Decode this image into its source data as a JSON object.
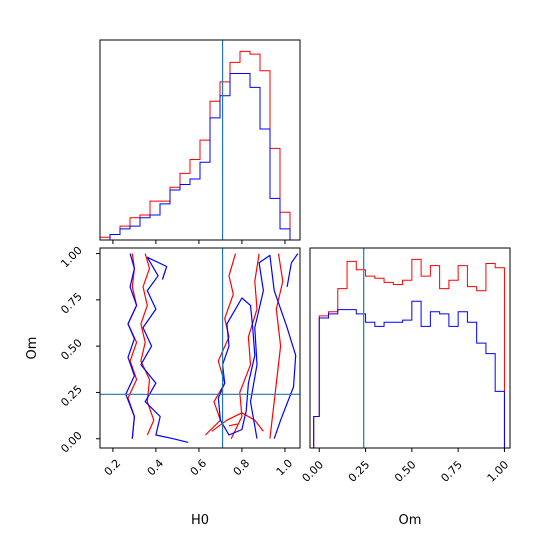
{
  "chart_data": [
    {
      "panel": "H0 marginal",
      "type": "histogram",
      "xlim": [
        0.14,
        1.07
      ],
      "truth_x": 0.71,
      "x_ticks": [
        0.2,
        0.4,
        0.6,
        0.8,
        1.0
      ],
      "bins": [
        0.14,
        0.1865,
        0.233,
        0.2795,
        0.326,
        0.3725,
        0.419,
        0.4655,
        0.512,
        0.5585,
        0.605,
        0.6515,
        0.698,
        0.7445,
        0.791,
        0.8375,
        0.884,
        0.9305,
        0.977,
        1.0235,
        1.07
      ],
      "series": [
        {
          "color": "#ff0000",
          "values": [
            1,
            2,
            5,
            8,
            9,
            14,
            14,
            19,
            24,
            29,
            36,
            50,
            57,
            64,
            68,
            67,
            61,
            33,
            10,
            0
          ]
        },
        {
          "color": "#0000ff",
          "values": [
            0,
            2,
            4,
            5,
            8,
            9,
            13,
            18,
            20,
            22,
            28,
            44,
            52,
            60,
            60,
            55,
            40,
            15,
            4,
            0
          ]
        }
      ]
    },
    {
      "panel": "Om vs H0 2D",
      "type": "contour",
      "xlabel": "H0",
      "ylabel": "Om",
      "xlim": [
        0.14,
        1.07
      ],
      "ylim": [
        -0.05,
        1.03
      ],
      "x_ticks": [
        "0.2",
        "0.4",
        "0.6",
        "0.8",
        "1.0"
      ],
      "y_ticks": [
        "0.00",
        "0.25",
        "0.50",
        "0.75",
        "1.00"
      ],
      "truth": {
        "x": 0.71,
        "y": 0.24
      },
      "series": [
        {
          "color": "#ff0000",
          "contours": [
            [
              [
                0.36,
                0.02
              ],
              [
                0.39,
                0.1
              ],
              [
                0.36,
                0.2
              ],
              [
                0.37,
                0.32
              ],
              [
                0.33,
                0.42
              ],
              [
                0.35,
                0.52
              ],
              [
                0.33,
                0.62
              ],
              [
                0.36,
                0.72
              ],
              [
                0.34,
                0.82
              ],
              [
                0.37,
                0.92
              ],
              [
                0.35,
                1.0
              ]
            ],
            [
              [
                0.29,
                0.0
              ],
              [
                0.3,
                0.12
              ],
              [
                0.27,
                0.22
              ],
              [
                0.31,
                0.32
              ],
              [
                0.28,
                0.42
              ],
              [
                0.31,
                0.52
              ],
              [
                0.27,
                0.62
              ],
              [
                0.31,
                0.72
              ],
              [
                0.29,
                0.82
              ],
              [
                0.3,
                0.92
              ],
              [
                0.29,
                1.0
              ]
            ],
            [
              [
                0.63,
                0.02
              ],
              [
                0.7,
                0.1
              ],
              [
                0.67,
                0.2
              ],
              [
                0.72,
                0.3
              ],
              [
                0.69,
                0.42
              ],
              [
                0.74,
                0.55
              ],
              [
                0.72,
                0.65
              ],
              [
                0.76,
                0.78
              ],
              [
                0.74,
                0.88
              ],
              [
                0.77,
                1.0
              ]
            ],
            [
              [
                0.66,
                0.04
              ],
              [
                0.73,
                0.1
              ],
              [
                0.8,
                0.14
              ],
              [
                0.86,
                0.1
              ],
              [
                0.9,
                0.04
              ]
            ],
            [
              [
                0.75,
                0.0
              ],
              [
                0.8,
                0.12
              ],
              [
                0.79,
                0.25
              ],
              [
                0.84,
                0.4
              ],
              [
                0.83,
                0.55
              ],
              [
                0.87,
                0.7
              ],
              [
                0.86,
                0.85
              ],
              [
                0.88,
                1.0
              ]
            ],
            [
              [
                0.93,
                0.0
              ],
              [
                0.95,
                0.2
              ],
              [
                0.98,
                0.5
              ],
              [
                0.96,
                0.7
              ],
              [
                0.99,
                0.85
              ],
              [
                0.97,
                1.0
              ]
            ],
            [
              [
                0.74,
                0.07
              ],
              [
                0.78,
                0.08
              ]
            ]
          ]
        },
        {
          "color": "#0000ff",
          "contours": [
            [
              [
                0.55,
                -0.02
              ],
              [
                0.48,
                0.0
              ],
              [
                0.4,
                0.02
              ],
              [
                0.42,
                0.12
              ],
              [
                0.35,
                0.2
              ],
              [
                0.4,
                0.3
              ],
              [
                0.33,
                0.4
              ],
              [
                0.38,
                0.5
              ],
              [
                0.34,
                0.6
              ],
              [
                0.4,
                0.7
              ],
              [
                0.36,
                0.8
              ],
              [
                0.41,
                0.88
              ],
              [
                0.36,
                0.98
              ],
              [
                0.45,
                0.93
              ],
              [
                0.43,
                0.86
              ]
            ],
            [
              [
                0.29,
                0.0
              ],
              [
                0.3,
                0.12
              ],
              [
                0.26,
                0.24
              ],
              [
                0.3,
                0.34
              ],
              [
                0.27,
                0.44
              ],
              [
                0.3,
                0.54
              ],
              [
                0.27,
                0.62
              ],
              [
                0.31,
                0.72
              ],
              [
                0.28,
                0.82
              ],
              [
                0.3,
                0.92
              ],
              [
                0.28,
                1.0
              ]
            ],
            [
              [
                0.69,
                0.22
              ],
              [
                0.72,
                0.3
              ],
              [
                0.71,
                0.4
              ],
              [
                0.74,
                0.5
              ],
              [
                0.73,
                0.62
              ],
              [
                0.77,
                0.7
              ],
              [
                0.8,
                0.76
              ],
              [
                0.84,
                0.72
              ],
              [
                0.85,
                0.6
              ],
              [
                0.86,
                0.45
              ],
              [
                0.83,
                0.3
              ],
              [
                0.82,
                0.15
              ],
              [
                0.8,
                0.05
              ],
              [
                0.74,
                0.02
              ],
              [
                0.7,
                0.1
              ],
              [
                0.69,
                0.22
              ]
            ],
            [
              [
                0.87,
                0.0
              ],
              [
                0.84,
                0.2
              ],
              [
                0.87,
                0.4
              ],
              [
                0.86,
                0.6
              ],
              [
                0.9,
                0.8
              ],
              [
                0.88,
                0.95
              ],
              [
                0.93,
                0.99
              ],
              [
                0.95,
                0.8
              ],
              [
                1.01,
                0.6
              ],
              [
                1.05,
                0.45
              ],
              [
                1.04,
                0.28
              ],
              [
                0.98,
                0.1
              ],
              [
                0.95,
                0.0
              ]
            ],
            [
              [
                1.01,
                0.82
              ],
              [
                1.03,
                0.95
              ],
              [
                1.06,
                1.0
              ]
            ]
          ]
        }
      ]
    },
    {
      "panel": "Om marginal",
      "type": "histogram",
      "xlabel": "Om",
      "xlim": [
        -0.05,
        1.03
      ],
      "truth_x": 0.24,
      "x_ticks": [
        "0.00",
        "0.25",
        "0.50",
        "0.75",
        "1.00"
      ],
      "bins": [
        -0.03,
        0.0,
        0.05,
        0.1,
        0.15,
        0.2,
        0.25,
        0.3,
        0.35,
        0.4,
        0.45,
        0.5,
        0.55,
        0.6,
        0.65,
        0.7,
        0.75,
        0.8,
        0.85,
        0.9,
        0.95,
        1.0
      ],
      "series": [
        {
          "color": "#ff0000",
          "values": [
            15,
            63,
            65,
            76,
            89,
            85,
            82,
            81,
            79,
            78,
            80,
            90,
            82,
            87,
            76,
            80,
            87,
            77,
            75,
            88,
            86
          ]
        },
        {
          "color": "#0000ff",
          "values": [
            15,
            62,
            64,
            66,
            66,
            64,
            60,
            58,
            60,
            60,
            61,
            70,
            58,
            65,
            64,
            58,
            65,
            60,
            50,
            45,
            27
          ]
        }
      ]
    }
  ]
}
